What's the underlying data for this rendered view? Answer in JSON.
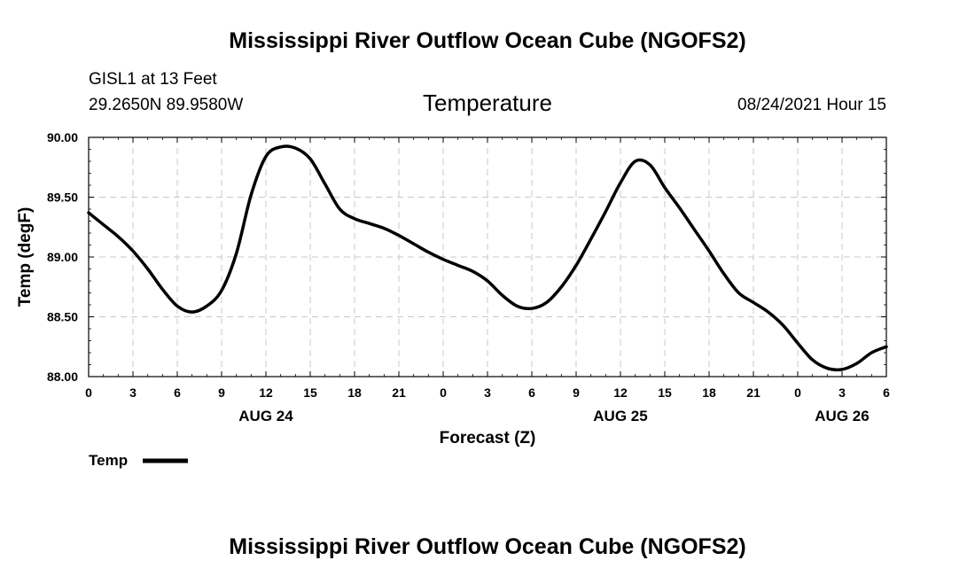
{
  "header": {
    "title": "Mississippi River Outflow Ocean Cube (NGOFS2)",
    "footer_title": "Mississippi River Outflow Ocean Cube (NGOFS2)",
    "station": "GISL1 at 13 Feet",
    "location": "29.2650N  89.9580W",
    "variable": "Temperature",
    "datetime": "08/24/2021 Hour 15"
  },
  "chart_data": {
    "type": "line",
    "xlabel": "Forecast (Z)",
    "ylabel": "Temp (degF)",
    "xlim": [
      0,
      54
    ],
    "ylim": [
      88.0,
      90.0
    ],
    "grid": true,
    "x_ticks": [
      0,
      3,
      6,
      9,
      12,
      15,
      18,
      21,
      24,
      27,
      30,
      33,
      36,
      39,
      42,
      45,
      48,
      51,
      54
    ],
    "x_tick_labels": [
      "0",
      "3",
      "6",
      "9",
      "12",
      "15",
      "18",
      "21",
      "0",
      "3",
      "6",
      "9",
      "12",
      "15",
      "18",
      "21",
      "0",
      "3",
      "6"
    ],
    "y_ticks": [
      88.0,
      88.5,
      89.0,
      89.5,
      90.0
    ],
    "y_tick_labels": [
      "88.00",
      "88.50",
      "89.00",
      "89.50",
      "90.00"
    ],
    "date_labels": [
      {
        "x": 12,
        "label": "AUG 24"
      },
      {
        "x": 36,
        "label": "AUG 25"
      },
      {
        "x": 51,
        "label": "AUG 26"
      }
    ],
    "legend": {
      "placement": "bottom-left",
      "entries": [
        {
          "name": "Temp",
          "color": "#000000"
        }
      ]
    },
    "series": [
      {
        "name": "Temp",
        "color": "#000000",
        "x": [
          0,
          1,
          2,
          3,
          4,
          5,
          6,
          7,
          8,
          9,
          10,
          11,
          12,
          13,
          14,
          15,
          16,
          17,
          18,
          19,
          20,
          21,
          22,
          23,
          24,
          25,
          26,
          27,
          28,
          29,
          30,
          31,
          32,
          33,
          34,
          35,
          36,
          37,
          38,
          39,
          40,
          41,
          42,
          43,
          44,
          45,
          46,
          47,
          48,
          49,
          50,
          51,
          52,
          53,
          54
        ],
        "values": [
          89.37,
          89.27,
          89.17,
          89.05,
          88.9,
          88.73,
          88.59,
          88.54,
          88.59,
          88.72,
          89.03,
          89.52,
          89.84,
          89.92,
          89.91,
          89.82,
          89.61,
          89.4,
          89.32,
          89.28,
          89.24,
          89.18,
          89.11,
          89.04,
          88.98,
          88.93,
          88.88,
          88.8,
          88.68,
          88.59,
          88.57,
          88.62,
          88.75,
          88.93,
          89.15,
          89.38,
          89.62,
          89.8,
          89.77,
          89.58,
          89.41,
          89.23,
          89.05,
          88.86,
          88.7,
          88.62,
          88.54,
          88.43,
          88.28,
          88.14,
          88.07,
          88.06,
          88.11,
          88.2,
          88.25
        ]
      }
    ]
  }
}
